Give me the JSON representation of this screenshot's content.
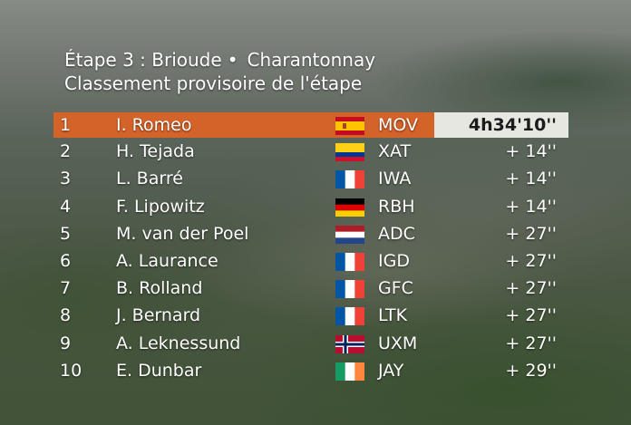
{
  "header": {
    "stage": "Étape 3 : Brioude",
    "separator": "•",
    "destination": "Charantonnay",
    "subtitle": "Classement provisoire de l'étape"
  },
  "rows": [
    {
      "pos": "1",
      "name": "I. Romeo",
      "flag": "spain",
      "team": "MOV",
      "time": "4h34'10''"
    },
    {
      "pos": "2",
      "name": "H. Tejada",
      "flag": "colombia",
      "team": "XAT",
      "time": "+ 14''"
    },
    {
      "pos": "3",
      "name": "L. Barré",
      "flag": "france",
      "team": "IWA",
      "time": "+ 14''"
    },
    {
      "pos": "4",
      "name": "F. Lipowitz",
      "flag": "germany",
      "team": "RBH",
      "time": "+ 14''"
    },
    {
      "pos": "5",
      "name": "M. van der Poel",
      "flag": "netherlands",
      "team": "ADC",
      "time": "+ 27''"
    },
    {
      "pos": "6",
      "name": "A. Laurance",
      "flag": "france",
      "team": "IGD",
      "time": "+ 27''"
    },
    {
      "pos": "7",
      "name": "B. Rolland",
      "flag": "france",
      "team": "GFC",
      "time": "+ 27''"
    },
    {
      "pos": "8",
      "name": "J. Bernard",
      "flag": "france",
      "team": "LTK",
      "time": "+ 27''"
    },
    {
      "pos": "9",
      "name": "A. Leknessund",
      "flag": "norway",
      "team": "UXM",
      "time": "+ 27''"
    },
    {
      "pos": "10",
      "name": "E. Dunbar",
      "flag": "ireland",
      "team": "JAY",
      "time": "+ 29''"
    }
  ],
  "colors": {
    "leader_band": "#d4632a",
    "leader_time_box": "#e7e7e2",
    "text": "#ffffff"
  }
}
